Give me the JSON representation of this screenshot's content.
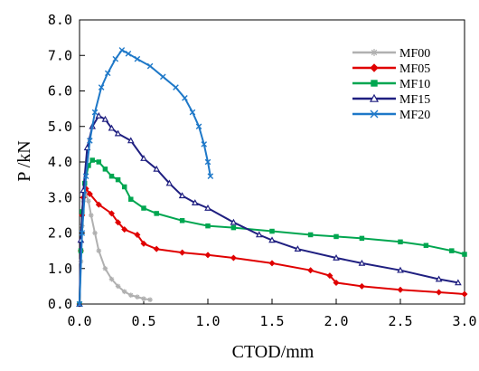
{
  "chart_data": {
    "type": "line",
    "title": "",
    "xlabel": "CTOD/mm",
    "ylabel": "P /kN",
    "xlim": [
      0,
      3.0
    ],
    "ylim": [
      0,
      8.0
    ],
    "x_ticks": [
      "0.0",
      "0.5",
      "1.0",
      "1.5",
      "2.0",
      "2.5",
      "3.0"
    ],
    "y_ticks": [
      "0.0",
      "1.0",
      "2.0",
      "3.0",
      "4.0",
      "5.0",
      "6.0",
      "7.0",
      "8.0"
    ],
    "grid": false,
    "legend_position": "top-right",
    "series": [
      {
        "name": "MF00",
        "color": "#b0b0b0",
        "marker": "asterisk",
        "points": [
          [
            0.0,
            0.0
          ],
          [
            0.01,
            1.2
          ],
          [
            0.02,
            2.2
          ],
          [
            0.03,
            2.9
          ],
          [
            0.05,
            3.1
          ],
          [
            0.07,
            2.9
          ],
          [
            0.09,
            2.5
          ],
          [
            0.12,
            2.0
          ],
          [
            0.15,
            1.5
          ],
          [
            0.2,
            1.0
          ],
          [
            0.25,
            0.7
          ],
          [
            0.3,
            0.5
          ],
          [
            0.35,
            0.35
          ],
          [
            0.4,
            0.25
          ],
          [
            0.45,
            0.2
          ],
          [
            0.5,
            0.15
          ],
          [
            0.55,
            0.12
          ]
        ]
      },
      {
        "name": "MF05",
        "color": "#e00000",
        "marker": "diamond",
        "points": [
          [
            0.0,
            0.0
          ],
          [
            0.01,
            1.5
          ],
          [
            0.02,
            2.5
          ],
          [
            0.03,
            3.0
          ],
          [
            0.05,
            3.25
          ],
          [
            0.08,
            3.1
          ],
          [
            0.15,
            2.8
          ],
          [
            0.25,
            2.55
          ],
          [
            0.3,
            2.3
          ],
          [
            0.35,
            2.1
          ],
          [
            0.45,
            1.95
          ],
          [
            0.5,
            1.7
          ],
          [
            0.6,
            1.55
          ],
          [
            0.8,
            1.45
          ],
          [
            1.0,
            1.38
          ],
          [
            1.2,
            1.3
          ],
          [
            1.5,
            1.15
          ],
          [
            1.8,
            0.95
          ],
          [
            1.95,
            0.8
          ],
          [
            2.0,
            0.6
          ],
          [
            2.2,
            0.5
          ],
          [
            2.5,
            0.4
          ],
          [
            2.8,
            0.33
          ],
          [
            3.0,
            0.28
          ]
        ]
      },
      {
        "name": "MF10",
        "color": "#00a650",
        "marker": "square",
        "points": [
          [
            0.0,
            0.0
          ],
          [
            0.01,
            1.5
          ],
          [
            0.02,
            2.6
          ],
          [
            0.04,
            3.4
          ],
          [
            0.07,
            3.9
          ],
          [
            0.1,
            4.05
          ],
          [
            0.15,
            4.0
          ],
          [
            0.2,
            3.8
          ],
          [
            0.25,
            3.6
          ],
          [
            0.3,
            3.5
          ],
          [
            0.35,
            3.3
          ],
          [
            0.4,
            2.95
          ],
          [
            0.5,
            2.7
          ],
          [
            0.6,
            2.55
          ],
          [
            0.8,
            2.35
          ],
          [
            1.0,
            2.2
          ],
          [
            1.2,
            2.15
          ],
          [
            1.5,
            2.05
          ],
          [
            1.8,
            1.95
          ],
          [
            2.0,
            1.9
          ],
          [
            2.2,
            1.85
          ],
          [
            2.5,
            1.75
          ],
          [
            2.7,
            1.65
          ],
          [
            2.9,
            1.5
          ],
          [
            3.0,
            1.4
          ]
        ]
      },
      {
        "name": "MF15",
        "color": "#1f1f80",
        "marker": "triangle",
        "points": [
          [
            0.0,
            0.0
          ],
          [
            0.01,
            1.8
          ],
          [
            0.03,
            3.2
          ],
          [
            0.06,
            4.4
          ],
          [
            0.1,
            5.0
          ],
          [
            0.15,
            5.3
          ],
          [
            0.2,
            5.2
          ],
          [
            0.25,
            4.95
          ],
          [
            0.3,
            4.8
          ],
          [
            0.4,
            4.6
          ],
          [
            0.5,
            4.1
          ],
          [
            0.6,
            3.8
          ],
          [
            0.7,
            3.4
          ],
          [
            0.8,
            3.05
          ],
          [
            0.9,
            2.85
          ],
          [
            1.0,
            2.7
          ],
          [
            1.2,
            2.3
          ],
          [
            1.4,
            1.95
          ],
          [
            1.5,
            1.8
          ],
          [
            1.7,
            1.55
          ],
          [
            2.0,
            1.3
          ],
          [
            2.2,
            1.15
          ],
          [
            2.5,
            0.95
          ],
          [
            2.8,
            0.7
          ],
          [
            2.95,
            0.6
          ]
        ]
      },
      {
        "name": "MF20",
        "color": "#1e78c8",
        "marker": "x",
        "points": [
          [
            0.0,
            0.0
          ],
          [
            0.02,
            2.0
          ],
          [
            0.05,
            3.6
          ],
          [
            0.08,
            4.6
          ],
          [
            0.12,
            5.4
          ],
          [
            0.17,
            6.1
          ],
          [
            0.22,
            6.5
          ],
          [
            0.28,
            6.9
          ],
          [
            0.33,
            7.15
          ],
          [
            0.38,
            7.05
          ],
          [
            0.45,
            6.9
          ],
          [
            0.55,
            6.7
          ],
          [
            0.65,
            6.4
          ],
          [
            0.75,
            6.1
          ],
          [
            0.82,
            5.8
          ],
          [
            0.88,
            5.4
          ],
          [
            0.93,
            5.0
          ],
          [
            0.97,
            4.5
          ],
          [
            1.0,
            4.0
          ],
          [
            1.02,
            3.6
          ]
        ]
      }
    ]
  }
}
